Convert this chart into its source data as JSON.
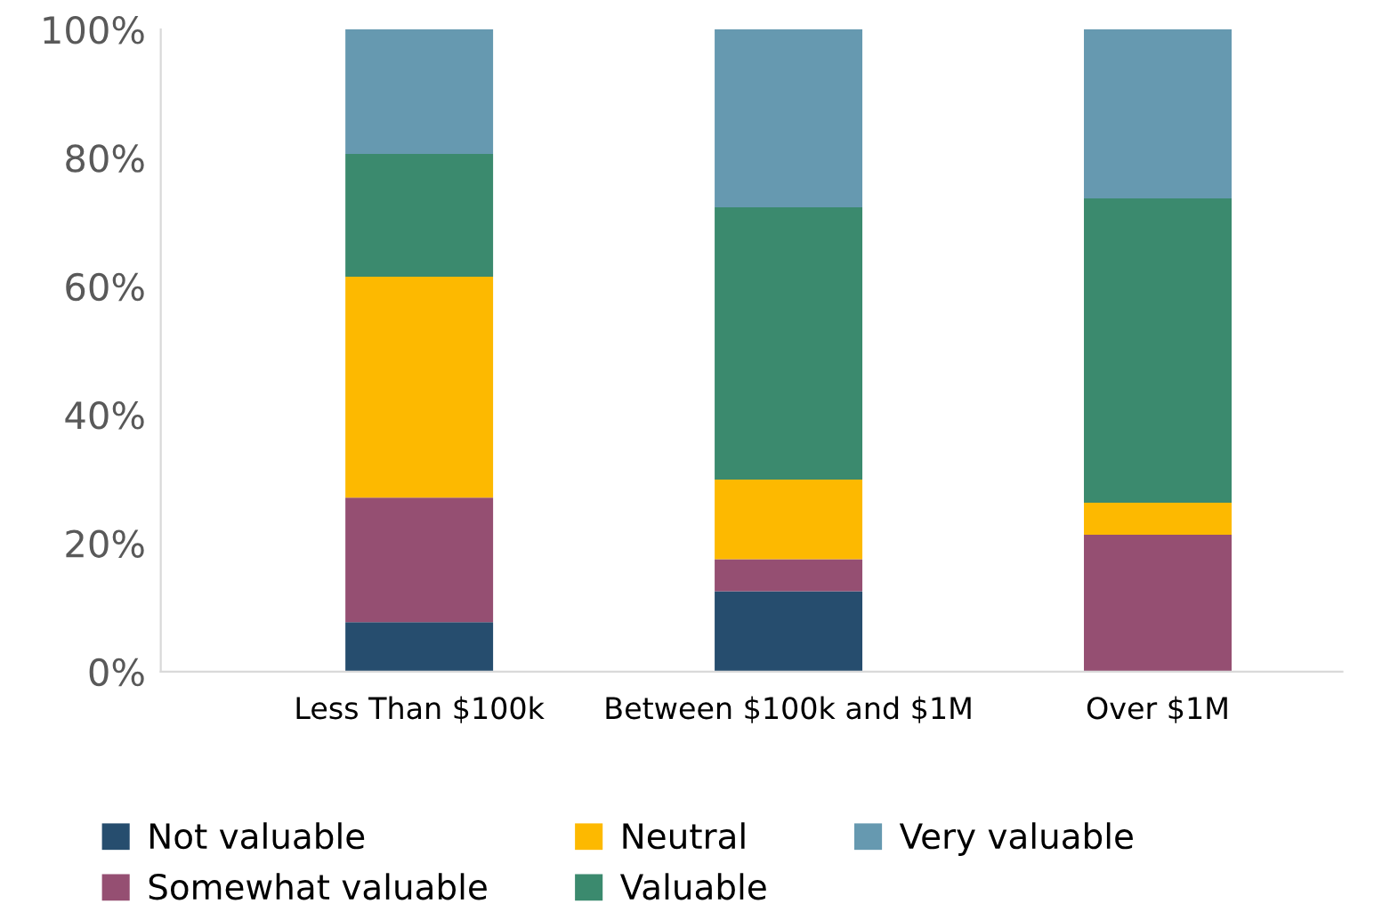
{
  "chart_data": {
    "type": "bar",
    "stacked": true,
    "categories": [
      "Less Than $100k",
      "Between $100k and $1M",
      "Over $1M"
    ],
    "series": [
      {
        "name": "Not valuable",
        "color": "#264d6e",
        "values": [
          7.7,
          12.5,
          0
        ]
      },
      {
        "name": "Somewhat valuable",
        "color": "#954f72",
        "values": [
          19.4,
          5,
          21.3
        ]
      },
      {
        "name": "Neutral",
        "color": "#fdb900",
        "values": [
          34.4,
          12.4,
          5
        ]
      },
      {
        "name": "Valuable",
        "color": "#3b8a6e",
        "values": [
          19.1,
          42.4,
          47.4
        ]
      },
      {
        "name": "Very valuable",
        "color": "#6699b0",
        "values": [
          19.4,
          27.7,
          26.3
        ]
      }
    ],
    "ylim": [
      0,
      100
    ],
    "yticks": [
      {
        "value": 0,
        "label": "0%"
      },
      {
        "value": 20,
        "label": "20%"
      },
      {
        "value": 40,
        "label": "40%"
      },
      {
        "value": 60,
        "label": "60%"
      },
      {
        "value": 80,
        "label": "80%"
      },
      {
        "value": 100,
        "label": "100%"
      }
    ],
    "grid": false,
    "legend": "bottom"
  }
}
